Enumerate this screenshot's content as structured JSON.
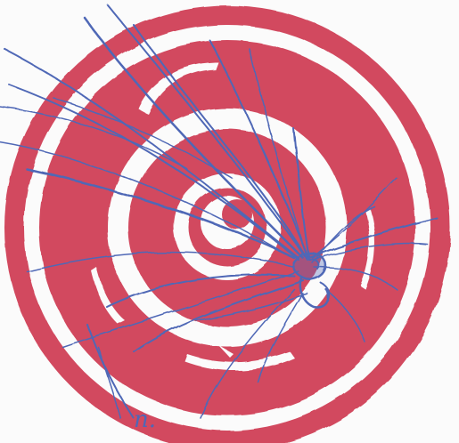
{
  "artwork": {
    "colors": {
      "red": "#d24a5f",
      "blue": "#4f67b6",
      "white": "#fbfbfb"
    },
    "target": {
      "ring_count": 8,
      "style": "hand-painted concentric rings"
    },
    "annotation": {
      "text": "n."
    }
  }
}
